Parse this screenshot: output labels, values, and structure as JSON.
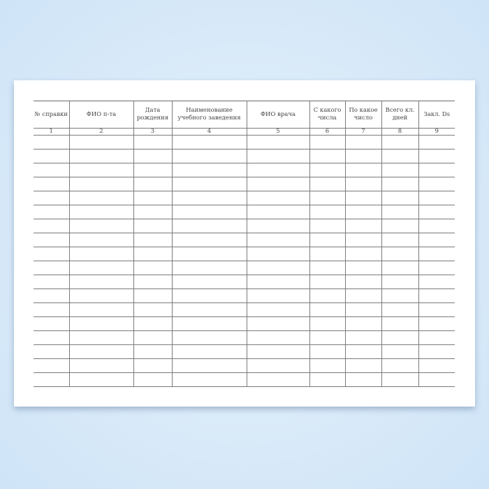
{
  "columns": [
    {
      "header": "№ справки",
      "number": "1"
    },
    {
      "header": "ФИО п-та",
      "number": "2"
    },
    {
      "header": "Дата рождения",
      "number": "3"
    },
    {
      "header": "Наименование учебного заведения",
      "number": "4"
    },
    {
      "header": "ФИО врача",
      "number": "5"
    },
    {
      "header": "С какого числа",
      "number": "6"
    },
    {
      "header": "По какое число",
      "number": "7"
    },
    {
      "header": "Всего кл. дней",
      "number": "8"
    },
    {
      "header": "Закл. Ds",
      "number": "9"
    }
  ],
  "empty_rows": 18
}
